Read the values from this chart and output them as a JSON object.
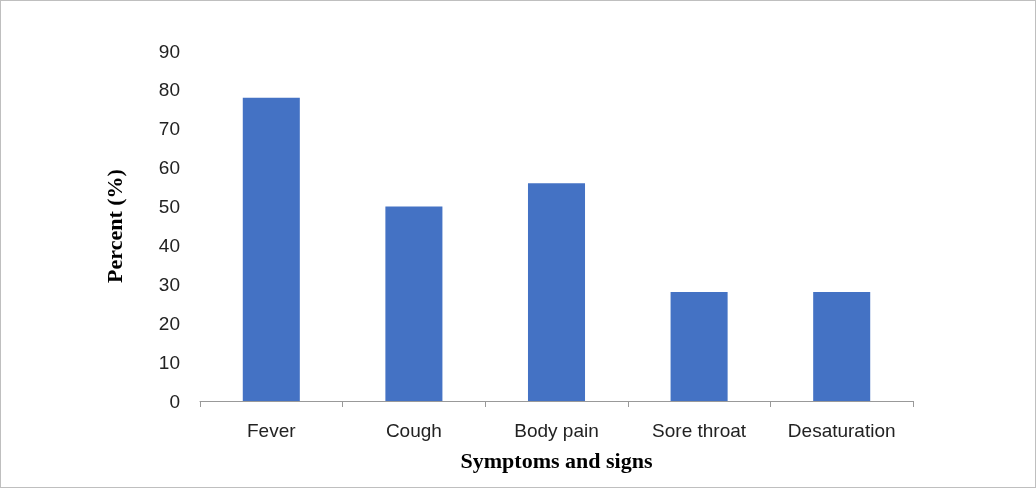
{
  "chart_data": {
    "type": "bar",
    "xlabel": "Symptoms and signs",
    "ylabel": "Percent (%)",
    "categories": [
      "Fever",
      "Cough",
      "Body pain",
      "Sore throat",
      "Desaturation"
    ],
    "values": [
      78,
      50,
      56,
      28,
      28
    ],
    "color": "#4472c4",
    "ylim": [
      0,
      90
    ],
    "yticks": [
      0,
      10,
      20,
      30,
      40,
      50,
      60,
      70,
      80,
      90
    ],
    "grid": false
  }
}
